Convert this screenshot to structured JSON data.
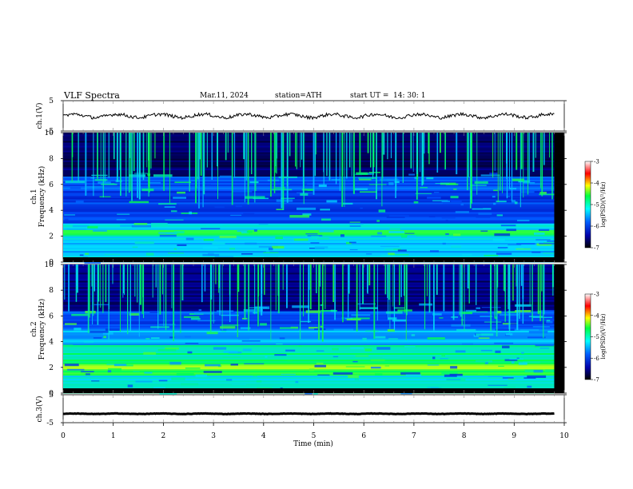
{
  "header": {
    "title": "VLF  Spectra",
    "date": "Mar.11, 2024",
    "station": "station=ATH",
    "start_label": "start  UT  =",
    "start_time": "14: 30: 1"
  },
  "colors": {
    "spectrogram_scale": [
      "#000033",
      "#0000aa",
      "#0044ff",
      "#00c8ff",
      "#00ff80",
      "#ffff00",
      "#ff0000",
      "#ffffff"
    ]
  },
  "chart_data": [
    {
      "type": "line",
      "panel": "ch1-waveform",
      "ylabel": "ch.1(V)",
      "ylim": [
        -5,
        5
      ],
      "yticks": [
        "5",
        "-5"
      ],
      "xlim": [
        0,
        10
      ],
      "mean_value": 0,
      "color": "#000000"
    },
    {
      "type": "heatmap",
      "panel": "ch1-spectrogram",
      "ylabel_top": "ch.1",
      "ylabel": "Frequency  (kHz)",
      "ylim": [
        0,
        10
      ],
      "yticks": [
        "0",
        "2",
        "4",
        "6",
        "8",
        "10"
      ],
      "xlim": [
        0,
        10
      ],
      "data_extent_min": 9.8,
      "colorbar": {
        "label": "log(PSD)(V²/Hz)",
        "range": [
          -7,
          -3
        ],
        "ticks": [
          "-3",
          "-4",
          "-5",
          "-6",
          "-7"
        ]
      }
    },
    {
      "type": "heatmap",
      "panel": "ch2-spectrogram",
      "ylabel_top": "ch.2",
      "ylabel": "Frequency  (kHz)",
      "ylim": [
        0,
        10
      ],
      "yticks": [
        "0",
        "2",
        "4",
        "6",
        "8",
        "10"
      ],
      "xlim": [
        0,
        10
      ],
      "data_extent_min": 9.8,
      "colorbar": {
        "label": "log(PSD)(V²/Hz)",
        "range": [
          -7,
          -3
        ],
        "ticks": [
          "-3",
          "-4",
          "-5",
          "-6",
          "-7"
        ]
      }
    },
    {
      "type": "line",
      "panel": "ch3-waveform",
      "ylabel": "ch.3(V)",
      "ylim": [
        -5,
        5
      ],
      "yticks": [
        "5",
        "-5"
      ],
      "xlim": [
        0,
        10
      ],
      "mean_value": -1.8,
      "xlabel": "Time  (min)",
      "xticks": [
        "0",
        "1",
        "2",
        "3",
        "4",
        "5",
        "6",
        "7",
        "8",
        "9",
        "10"
      ],
      "color": "#000000"
    }
  ]
}
